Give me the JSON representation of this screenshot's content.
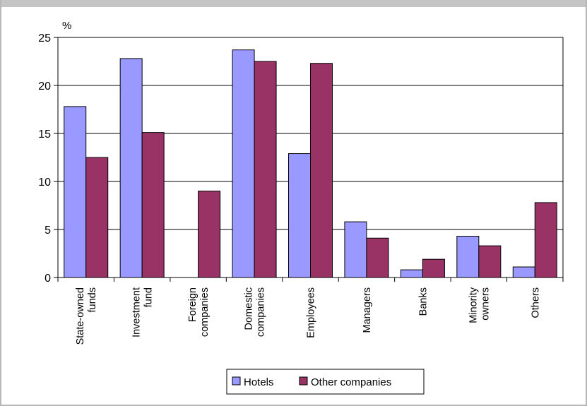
{
  "chart_data": {
    "type": "bar",
    "ylabel": "%",
    "ylim": [
      0,
      25
    ],
    "yticks": [
      0,
      5,
      10,
      15,
      20,
      25
    ],
    "grid": true,
    "legend_position": "bottom",
    "categories": [
      [
        "State-owned",
        "funds"
      ],
      [
        "Investment",
        "fund"
      ],
      [
        "Foreign",
        "companies"
      ],
      [
        "Domestic",
        "companies"
      ],
      [
        "Employees"
      ],
      [
        "Managers"
      ],
      [
        "Banks"
      ],
      [
        "Minority",
        "owners"
      ],
      [
        "Others"
      ]
    ],
    "series": [
      {
        "name": "Hotels",
        "color": "#9999ff",
        "values": [
          17.8,
          22.8,
          0,
          23.7,
          12.9,
          5.8,
          0.8,
          4.3,
          1.1
        ]
      },
      {
        "name": "Other companies",
        "color": "#993366",
        "values": [
          12.5,
          15.1,
          9.0,
          22.5,
          22.3,
          4.1,
          1.9,
          3.3,
          7.8
        ]
      }
    ]
  }
}
